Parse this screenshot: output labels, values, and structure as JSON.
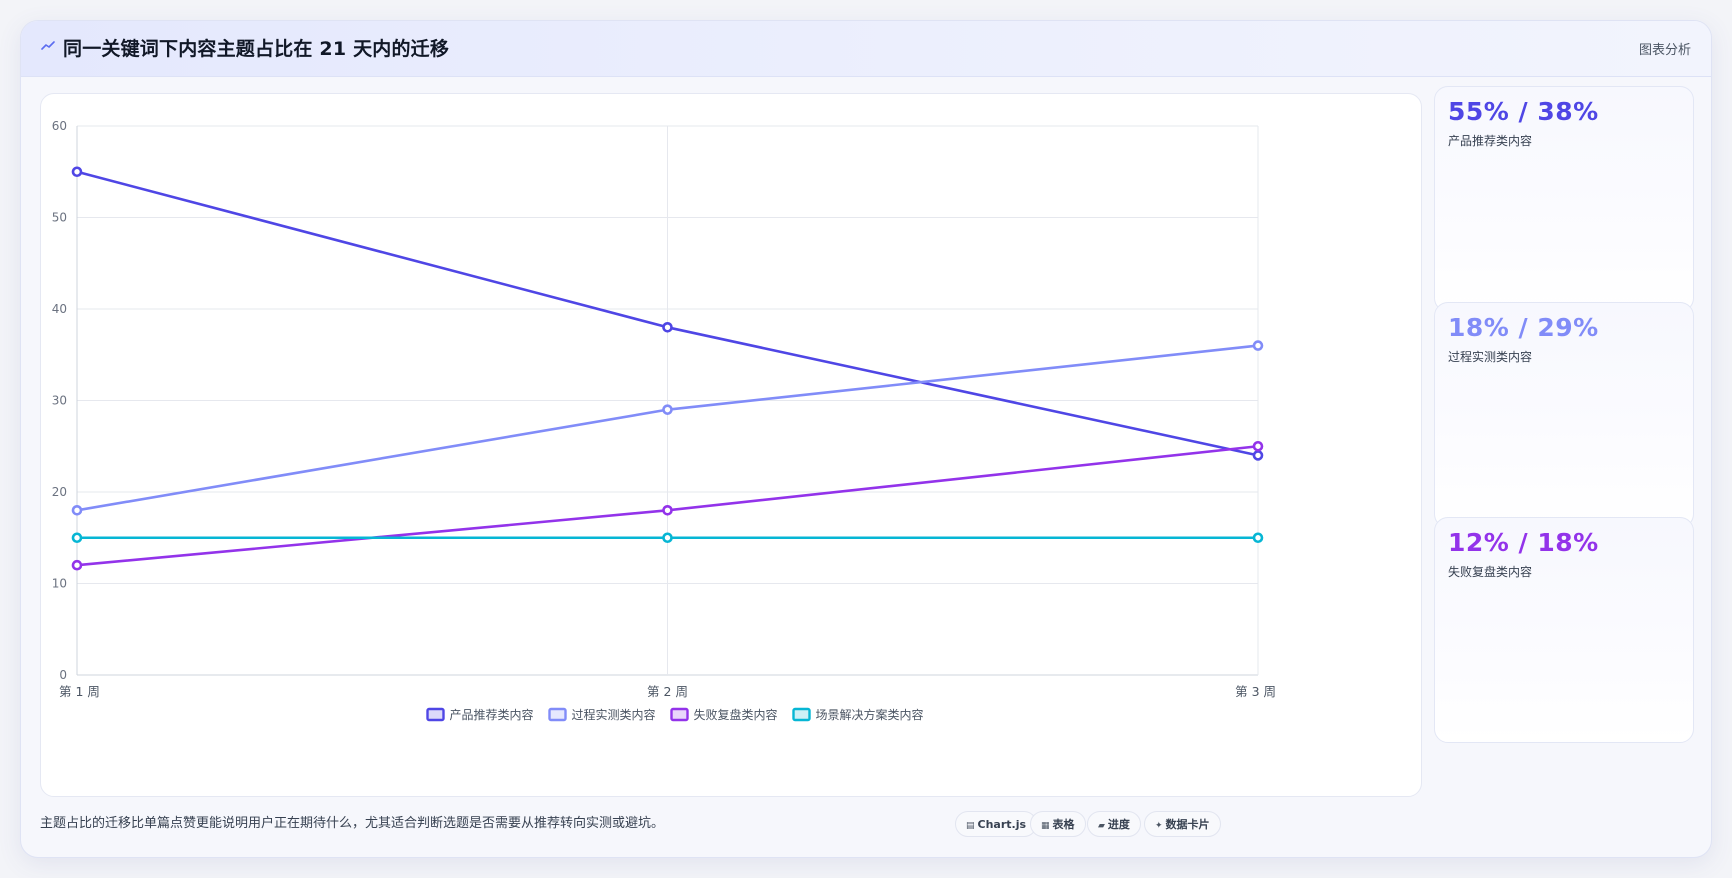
{
  "header": {
    "icon": "trend-icon",
    "title": "同一关键词下内容主题占比在 21 天内的迁移",
    "right_label": "图表分析"
  },
  "chart_data": {
    "type": "line",
    "categories": [
      "第 1 周",
      "第 2 周",
      "第 3 周"
    ],
    "ylim": [
      0,
      60
    ],
    "yticks": [
      0,
      10,
      20,
      30,
      40,
      50,
      60
    ],
    "grid": true,
    "legend_position": "bottom",
    "series": [
      {
        "name": "产品推荐类内容",
        "values": [
          55,
          38,
          24
        ],
        "color": "#4f46e5"
      },
      {
        "name": "过程实测类内容",
        "values": [
          18,
          29,
          36
        ],
        "color": "#818cf8"
      },
      {
        "name": "失败复盘类内容",
        "values": [
          12,
          18,
          25
        ],
        "color": "#9333ea"
      },
      {
        "name": "场景解决方案类内容",
        "values": [
          15,
          15,
          15
        ],
        "color": "#06b6d4"
      }
    ]
  },
  "metrics": [
    {
      "value": "55% / 38%",
      "label": "产品推荐类内容",
      "color": "#4f46e5"
    },
    {
      "value": "18% / 29%",
      "label": "过程实测类内容",
      "color": "#818cf8"
    },
    {
      "value": "12% / 18%",
      "label": "失败复盘类内容",
      "color": "#9333ea"
    }
  ],
  "footer": {
    "note": "主题占比的迁移比单篇点赞更能说明用户正在期待什么，尤其适合判断选题是否需要从推荐转向实测或避坑。",
    "chips": [
      {
        "icon": "chart-icon",
        "label": "Chart.js"
      },
      {
        "icon": "table-icon",
        "label": "表格"
      },
      {
        "icon": "progress-icon",
        "label": "进度"
      },
      {
        "icon": "sparkle-icon",
        "label": "数据卡片"
      }
    ]
  }
}
